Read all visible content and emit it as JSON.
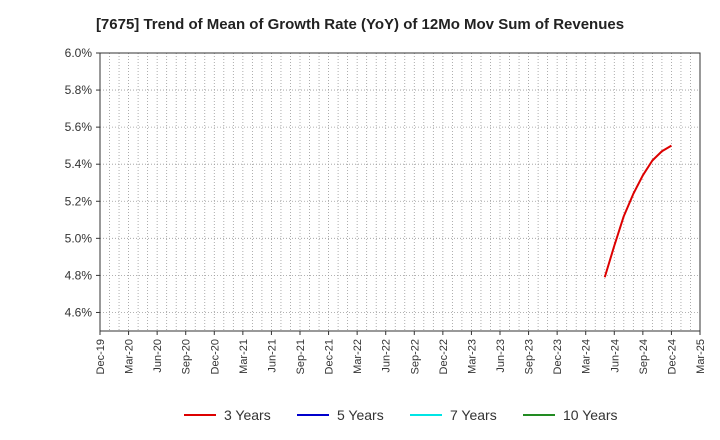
{
  "chart_data": {
    "type": "line",
    "title": "[7675]  Trend of Mean of Growth Rate (YoY) of 12Mo Mov Sum of Revenues",
    "xlabel": "",
    "ylabel": "",
    "x_tick_labels": [
      "Dec-19",
      "Mar-20",
      "Jun-20",
      "Sep-20",
      "Dec-20",
      "Mar-21",
      "Jun-21",
      "Sep-21",
      "Dec-21",
      "Mar-22",
      "Jun-22",
      "Sep-22",
      "Dec-22",
      "Mar-23",
      "Jun-23",
      "Sep-23",
      "Dec-23",
      "Mar-24",
      "Jun-24",
      "Sep-24",
      "Dec-24",
      "Mar-25"
    ],
    "y_tick_labels": [
      "4.6%",
      "4.8%",
      "5.0%",
      "5.2%",
      "5.4%",
      "5.6%",
      "5.8%",
      "6.0%"
    ],
    "y_ticks": [
      4.6,
      4.8,
      5.0,
      5.2,
      5.4,
      5.6,
      5.8,
      6.0
    ],
    "ylim": [
      4.5,
      6.0
    ],
    "xlim": [
      "Dec-19",
      "Mar-25"
    ],
    "grid": true,
    "legend_position": "bottom",
    "series": [
      {
        "name": "3 Years",
        "color": "#dd0000",
        "points": [
          {
            "x": "May-24",
            "y": 4.79
          },
          {
            "x": "Jun-24",
            "y": 4.96
          },
          {
            "x": "Jul-24",
            "y": 5.12
          },
          {
            "x": "Aug-24",
            "y": 5.24
          },
          {
            "x": "Sep-24",
            "y": 5.34
          },
          {
            "x": "Oct-24",
            "y": 5.42
          },
          {
            "x": "Nov-24",
            "y": 5.47
          },
          {
            "x": "Dec-24",
            "y": 5.5
          }
        ]
      },
      {
        "name": "5 Years",
        "color": "#0000cc",
        "points": []
      },
      {
        "name": "7 Years",
        "color": "#00e5e5",
        "points": []
      },
      {
        "name": "10 Years",
        "color": "#228b22",
        "points": []
      }
    ]
  }
}
